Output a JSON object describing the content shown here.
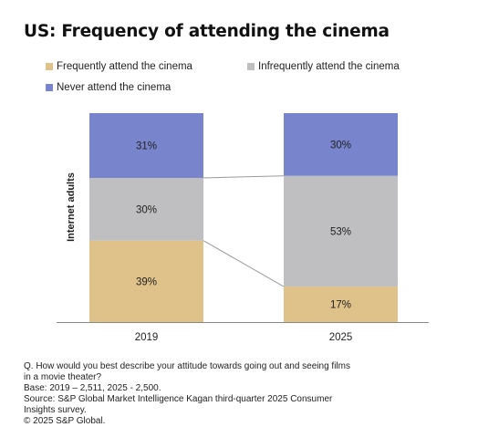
{
  "title": "US: Frequency of attending the cinema",
  "colors": {
    "frequent": "#dfc28a",
    "infrequent": "#bfbfc1",
    "never": "#7884cc",
    "connector": "#9a9a9a",
    "axis": "#888888"
  },
  "chart_data": {
    "type": "bar",
    "stacked": true,
    "categories": [
      "2019",
      "2025"
    ],
    "ylabel": "Internet adults",
    "ylim": [
      0,
      100
    ],
    "legend_position": "top",
    "series": [
      {
        "name": "Frequently attend the cinema",
        "values": [
          39,
          17
        ],
        "labels": [
          "39%",
          "17%"
        ],
        "color": "#dfc28a"
      },
      {
        "name": "Infrequently attend the cinema",
        "values": [
          30,
          53
        ],
        "labels": [
          "30%",
          "53%"
        ],
        "color": "#bfbfc1"
      },
      {
        "name": "Never attend the cinema",
        "values": [
          31,
          30
        ],
        "labels": [
          "31%",
          "30%"
        ],
        "color": "#7884cc"
      }
    ]
  },
  "footnotes": [
    "Q. How would you best describe your attitude towards going out and seeing films",
    "in a movie theater?",
    "Base: 2019 – 2,511, 2025 - 2,500.",
    "Source: S&P Global Market Intelligence Kagan third-quarter 2025 Consumer",
    "Insights survey.",
    "© 2025 S&P Global."
  ]
}
